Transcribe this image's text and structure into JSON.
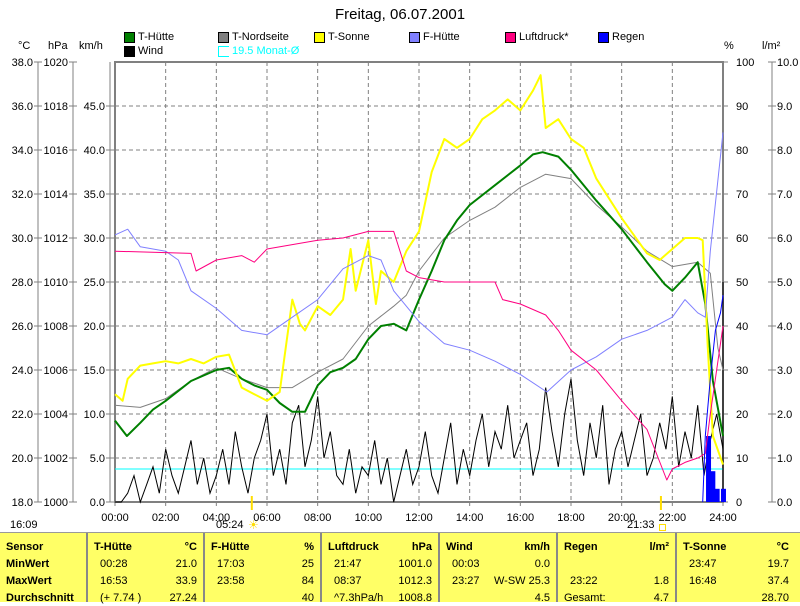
{
  "title": "Freitag, 06.07.2001",
  "units": {
    "c": "°C",
    "hpa": "hPa",
    "kmh": "km/h",
    "pct": "%",
    "lm2": "l/m²"
  },
  "legend": [
    {
      "label": "T-Hütte",
      "color": "#008000"
    },
    {
      "label": "T-Nordseite",
      "color": "#808080"
    },
    {
      "label": "T-Sonne",
      "color": "#ffff00"
    },
    {
      "label": "F-Hütte",
      "color": "#8080ff"
    },
    {
      "label": "Luftdruck*",
      "color": "#ff0080"
    },
    {
      "label": "Regen",
      "color": "#0000ff"
    },
    {
      "label": "Wind",
      "color": "#000000"
    }
  ],
  "monthly_avg": {
    "label": "19.5 Monat-Ø",
    "value": 19.5,
    "color": "#00ffff"
  },
  "times": {
    "current": "16:09",
    "sunrise": "05:24",
    "sunset": "21:33"
  },
  "chart_data": {
    "type": "line",
    "title": "Freitag, 06.07.2001",
    "x_ticks": [
      "00:00",
      "02:00",
      "04:00",
      "06:00",
      "08:00",
      "10:00",
      "12:00",
      "14:00",
      "16:00",
      "18:00",
      "20:00",
      "22:00",
      "24:00"
    ],
    "axes": {
      "c": {
        "range": [
          18,
          38
        ],
        "ticks": [
          "18.0",
          "20.0",
          "22.0",
          "24.0",
          "26.0",
          "28.0",
          "30.0",
          "32.0",
          "34.0",
          "36.0",
          "38.0"
        ]
      },
      "hpa": {
        "range": [
          1000,
          1020
        ],
        "ticks": [
          "1000",
          "1002",
          "1004",
          "1006",
          "1008",
          "1010",
          "1012",
          "1014",
          "1016",
          "1018",
          "1020"
        ]
      },
      "kmh": {
        "range": [
          0,
          50
        ],
        "ticks": [
          "0.0",
          "5.0",
          "10.0",
          "15.0",
          "20.0",
          "25.0",
          "30.0",
          "35.0",
          "40.0",
          "45.0"
        ]
      },
      "pct": {
        "range": [
          0,
          100
        ],
        "ticks": [
          "0",
          "10",
          "20",
          "30",
          "40",
          "50",
          "60",
          "70",
          "80",
          "90",
          "100"
        ]
      },
      "lm2": {
        "range": [
          0,
          10
        ],
        "ticks": [
          "0.0",
          "1.0",
          "2.0",
          "3.0",
          "4.0",
          "5.0",
          "6.0",
          "7.0",
          "8.0",
          "9.0",
          "10.0"
        ]
      }
    },
    "series": [
      {
        "name": "T-Nordseite",
        "axis": "c",
        "color": "#808080",
        "width": 1,
        "points": [
          [
            0,
            22.4
          ],
          [
            1,
            22.3
          ],
          [
            2,
            22.7
          ],
          [
            3,
            23.5
          ],
          [
            4,
            24.1
          ],
          [
            5,
            23.6
          ],
          [
            6,
            23.2
          ],
          [
            7,
            23.2
          ],
          [
            8,
            23.9
          ],
          [
            9,
            24.5
          ],
          [
            10,
            26.0
          ],
          [
            11,
            26.9
          ],
          [
            11.5,
            27.4
          ],
          [
            12,
            28.5
          ],
          [
            13,
            30.0
          ],
          [
            14,
            30.8
          ],
          [
            15,
            31.4
          ],
          [
            16,
            32.3
          ],
          [
            17,
            32.9
          ],
          [
            18,
            32.7
          ],
          [
            19,
            31.5
          ],
          [
            20,
            30.5
          ],
          [
            21,
            29.4
          ],
          [
            22,
            28.7
          ],
          [
            23,
            28.9
          ],
          [
            23.5,
            28.4
          ],
          [
            23.8,
            25.0
          ],
          [
            24,
            24.0
          ]
        ]
      },
      {
        "name": "T-Hütte",
        "axis": "c",
        "color": "#008000",
        "width": 2,
        "points": [
          [
            0,
            21.7
          ],
          [
            0.47,
            21.0
          ],
          [
            1,
            21.6
          ],
          [
            1.5,
            22.2
          ],
          [
            2,
            22.6
          ],
          [
            3,
            23.5
          ],
          [
            4,
            24.0
          ],
          [
            4.5,
            24.1
          ],
          [
            5,
            23.6
          ],
          [
            5.5,
            23.3
          ],
          [
            6,
            23.1
          ],
          [
            6.5,
            22.5
          ],
          [
            7,
            22.1
          ],
          [
            7.5,
            22.1
          ],
          [
            8,
            23.3
          ],
          [
            8.5,
            23.9
          ],
          [
            9,
            24.1
          ],
          [
            9.5,
            24.5
          ],
          [
            10,
            25.4
          ],
          [
            10.5,
            26.0
          ],
          [
            11,
            26.1
          ],
          [
            11.5,
            25.8
          ],
          [
            12,
            27.2
          ],
          [
            12.5,
            28.5
          ],
          [
            13,
            29.9
          ],
          [
            13.5,
            30.8
          ],
          [
            14,
            31.5
          ],
          [
            15,
            32.4
          ],
          [
            16,
            33.3
          ],
          [
            16.5,
            33.8
          ],
          [
            16.88,
            33.9
          ],
          [
            17.5,
            33.7
          ],
          [
            18,
            33.1
          ],
          [
            19,
            31.7
          ],
          [
            20,
            30.4
          ],
          [
            21,
            28.9
          ],
          [
            21.7,
            27.9
          ],
          [
            22,
            27.6
          ],
          [
            22.5,
            28.2
          ],
          [
            23,
            28.9
          ],
          [
            23.3,
            27.0
          ],
          [
            23.6,
            23.5
          ],
          [
            24,
            21.0
          ]
        ]
      },
      {
        "name": "T-Sonne",
        "axis": "c",
        "color": "#ffff00",
        "width": 2,
        "points": [
          [
            0,
            22.9
          ],
          [
            0.3,
            22.6
          ],
          [
            0.5,
            23.6
          ],
          [
            1,
            24.2
          ],
          [
            1.5,
            24.3
          ],
          [
            2,
            24.4
          ],
          [
            2.5,
            24.3
          ],
          [
            3,
            24.5
          ],
          [
            3.5,
            24.3
          ],
          [
            4,
            24.6
          ],
          [
            4.5,
            24.7
          ],
          [
            5,
            23.2
          ],
          [
            5.5,
            22.9
          ],
          [
            6,
            22.6
          ],
          [
            6.5,
            23.0
          ],
          [
            7,
            27.2
          ],
          [
            7.3,
            26.1
          ],
          [
            7.5,
            25.8
          ],
          [
            8,
            26.9
          ],
          [
            8.5,
            26.5
          ],
          [
            9,
            27.2
          ],
          [
            9.3,
            29.5
          ],
          [
            9.5,
            27.6
          ],
          [
            10,
            29.9
          ],
          [
            10.3,
            27.0
          ],
          [
            10.5,
            28.5
          ],
          [
            11,
            28.0
          ],
          [
            11.5,
            29.4
          ],
          [
            12,
            30.3
          ],
          [
            12.5,
            33.0
          ],
          [
            13,
            34.5
          ],
          [
            13.5,
            34.1
          ],
          [
            14,
            34.5
          ],
          [
            14.5,
            35.4
          ],
          [
            15,
            35.8
          ],
          [
            15.5,
            36.3
          ],
          [
            16,
            35.8
          ],
          [
            16.5,
            36.7
          ],
          [
            16.8,
            37.4
          ],
          [
            17,
            35.0
          ],
          [
            17.5,
            35.4
          ],
          [
            18,
            34.5
          ],
          [
            18.5,
            34.1
          ],
          [
            19,
            32.7
          ],
          [
            20,
            30.9
          ],
          [
            21,
            29.3
          ],
          [
            21.5,
            29.0
          ],
          [
            22,
            29.5
          ],
          [
            22.5,
            30.0
          ],
          [
            23,
            30.0
          ],
          [
            23.2,
            29.9
          ],
          [
            23.4,
            25.0
          ],
          [
            23.6,
            21.0
          ],
          [
            24,
            19.7
          ]
        ]
      },
      {
        "name": "F-Hütte",
        "axis": "pct",
        "color": "#8080ff",
        "width": 1,
        "points": [
          [
            0,
            60.7
          ],
          [
            0.5,
            62
          ],
          [
            1,
            58
          ],
          [
            2,
            57
          ],
          [
            2.5,
            55
          ],
          [
            3,
            48
          ],
          [
            4,
            44
          ],
          [
            5,
            39
          ],
          [
            6,
            38
          ],
          [
            7,
            42
          ],
          [
            8,
            46
          ],
          [
            9,
            53
          ],
          [
            10,
            56
          ],
          [
            10.5,
            55
          ],
          [
            11,
            48
          ],
          [
            12,
            41
          ],
          [
            13,
            36
          ],
          [
            14,
            34.5
          ],
          [
            15,
            32
          ],
          [
            16,
            29
          ],
          [
            17.05,
            25
          ],
          [
            18,
            30
          ],
          [
            19,
            33
          ],
          [
            20,
            37
          ],
          [
            21,
            39
          ],
          [
            22,
            42
          ],
          [
            22.5,
            46
          ],
          [
            23,
            43
          ],
          [
            23.3,
            42
          ],
          [
            23.5,
            57
          ],
          [
            24,
            84
          ]
        ]
      },
      {
        "name": "Luftdruck*",
        "axis": "hpa",
        "color": "#ff0080",
        "width": 1,
        "points": [
          [
            0,
            1011.4
          ],
          [
            3,
            1011.3
          ],
          [
            3.2,
            1010.5
          ],
          [
            4,
            1011.0
          ],
          [
            5,
            1011.2
          ],
          [
            5.5,
            1010.9
          ],
          [
            6,
            1011.5
          ],
          [
            7,
            1011.7
          ],
          [
            8,
            1011.9
          ],
          [
            9,
            1012.0
          ],
          [
            10,
            1012.3
          ],
          [
            11,
            1012.3
          ],
          [
            11.5,
            1010.5
          ],
          [
            12,
            1010.2
          ],
          [
            13,
            1010.0
          ],
          [
            14,
            1010.0
          ],
          [
            15,
            1010.0
          ],
          [
            15.3,
            1009.2
          ],
          [
            16,
            1009.0
          ],
          [
            17,
            1008.5
          ],
          [
            17.5,
            1007.8
          ],
          [
            18,
            1006.9
          ],
          [
            19,
            1006.0
          ],
          [
            20,
            1004.6
          ],
          [
            21,
            1003.3
          ],
          [
            21.78,
            1001.0
          ],
          [
            22,
            1001.5
          ],
          [
            22.5,
            1001.8
          ],
          [
            23,
            1002.0
          ],
          [
            23.3,
            1002.2
          ],
          [
            23.5,
            1004.0
          ],
          [
            24,
            1008.0
          ]
        ]
      },
      {
        "name": "Regen-Summe",
        "axis": "lm2",
        "color": "#0000ff",
        "width": 1,
        "points": [
          [
            23.2,
            0
          ],
          [
            23.3,
            1.5
          ],
          [
            23.5,
            2.8
          ],
          [
            23.7,
            3.9
          ],
          [
            23.9,
            4.3
          ],
          [
            24,
            4.7
          ]
        ]
      }
    ],
    "wind": {
      "name": "Wind",
      "axis": "kmh",
      "step_hours": 0.25,
      "values": [
        0,
        0,
        1,
        3,
        0,
        2,
        4,
        1,
        6,
        3,
        1,
        4,
        7,
        2,
        5,
        1,
        3,
        6,
        2,
        8,
        4,
        1,
        5,
        7,
        10,
        3,
        6,
        2,
        9,
        11,
        4,
        7,
        12,
        5,
        8,
        3,
        2,
        6,
        1,
        4,
        3,
        7,
        2,
        5,
        0,
        3,
        6,
        2,
        4,
        8,
        3,
        1,
        5,
        9,
        2,
        6,
        3,
        7,
        10,
        4,
        8,
        6,
        11,
        5,
        7,
        9,
        3,
        6,
        13,
        8,
        4,
        10,
        14,
        7,
        3,
        9,
        5,
        11,
        2,
        6,
        8,
        4,
        7,
        10,
        3,
        5,
        9,
        6,
        12,
        4,
        8,
        5,
        11,
        3,
        7,
        10,
        6,
        9,
        13,
        5,
        8,
        3,
        11,
        7,
        4,
        9,
        12,
        6,
        10,
        2,
        8,
        5,
        12,
        7,
        3,
        9,
        11,
        4,
        6,
        13,
        8,
        5,
        10,
        3,
        7,
        9,
        4,
        12,
        6,
        2,
        8,
        5,
        10,
        7,
        3,
        9,
        6,
        12,
        4,
        8,
        2,
        6,
        9,
        3,
        12,
        7,
        5,
        10,
        4,
        8,
        11,
        3,
        6,
        9,
        2,
        7,
        10,
        5,
        8,
        4,
        13,
        6,
        3,
        9,
        11,
        5,
        2,
        8,
        14,
        6,
        10,
        3,
        5,
        12,
        4,
        9,
        7,
        2,
        11,
        6,
        13,
        8,
        3,
        10,
        5,
        7,
        12,
        4,
        9,
        1,
        6,
        3,
        10,
        7,
        13,
        5,
        8,
        11,
        3,
        6,
        2,
        9,
        13,
        5,
        8,
        15,
        9,
        12,
        4,
        14,
        7,
        20,
        11,
        25,
        8,
        14,
        6
      ]
    },
    "rain_bars": {
      "axis": "lm2",
      "color": "#0000ff",
      "values": [
        [
          23.33,
          1.5
        ],
        [
          23.5,
          0.7
        ],
        [
          23.67,
          0.3
        ],
        [
          23.92,
          0.3
        ]
      ]
    }
  },
  "table": {
    "headers": {
      "sensor": "Sensor",
      "min": "MinWert",
      "max": "MaxWert",
      "avg": "Durchschnitt"
    },
    "columns": [
      {
        "name": "T-Hütte",
        "unit": "°C",
        "min_time": "00:28",
        "min": "21.0",
        "max_time": "16:53",
        "max": "33.9",
        "avg_note": "(+ 7.74 )",
        "avg": "27.24"
      },
      {
        "name": "F-Hütte",
        "unit": "%",
        "min_time": "17:03",
        "min": "25",
        "max_time": "23:58",
        "max": "84",
        "avg_note": "",
        "avg": "40"
      },
      {
        "name": "Luftdruck",
        "unit": "hPa",
        "min_time": "21:47",
        "min": "1001.0",
        "max_time": "08:37",
        "max": "1012.3",
        "avg_note": "^7.3hPa/h",
        "avg": "1008.8"
      },
      {
        "name": "Wind",
        "unit": "km/h",
        "min_time": "00:03",
        "min": "0.0",
        "max_time": "23:27",
        "max": "W-SW 25.3",
        "avg_note": "",
        "avg": "4.5"
      },
      {
        "name": "Regen",
        "unit": "l/m²",
        "min_time": "",
        "min": "",
        "max_time": "23:22",
        "max": "1.8",
        "avg_note": "Gesamt:",
        "avg": "4.7"
      },
      {
        "name": "T-Sonne",
        "unit": "°C",
        "min_time": "23:47",
        "min": "19.7",
        "max_time": "16:48",
        "max": "37.4",
        "avg_note": "",
        "avg": "28.70"
      }
    ]
  }
}
